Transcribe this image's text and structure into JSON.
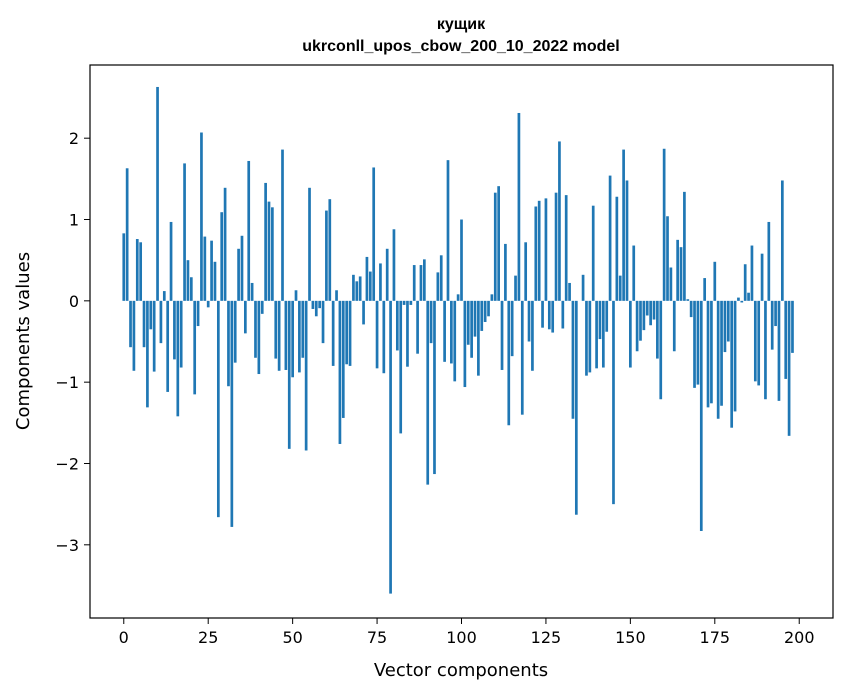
{
  "chart_data": {
    "type": "bar",
    "title_line1": "кущик",
    "title_line2": "ukrconll_upos_cbow_200_10_2022 model",
    "xlabel": "Vector components",
    "ylabel": "Components values",
    "xlim": [
      -10,
      210
    ],
    "ylim": [
      -3.9,
      2.9
    ],
    "xticks": [
      0,
      25,
      50,
      75,
      100,
      125,
      150,
      175,
      200
    ],
    "yticks": [
      -3,
      -2,
      -1,
      0,
      1,
      2
    ],
    "bar_color": "#1f77b4",
    "values": [
      0.83,
      1.63,
      -0.57,
      -0.86,
      0.76,
      0.72,
      -0.57,
      -1.31,
      -0.35,
      -0.87,
      2.63,
      -0.52,
      0.12,
      -1.12,
      0.97,
      -0.72,
      -1.42,
      -0.82,
      1.69,
      0.5,
      0.29,
      -1.15,
      -0.31,
      2.07,
      0.79,
      -0.08,
      0.74,
      0.48,
      -2.66,
      1.09,
      1.39,
      -1.05,
      -2.78,
      -0.76,
      0.64,
      0.8,
      -0.4,
      1.72,
      0.22,
      -0.7,
      -0.9,
      -0.16,
      1.45,
      1.22,
      1.15,
      -0.71,
      -0.86,
      1.86,
      -0.85,
      -1.82,
      -0.94,
      0.13,
      -0.88,
      -0.7,
      -1.84,
      1.39,
      -0.1,
      -0.19,
      -0.09,
      -0.52,
      1.11,
      1.25,
      -0.8,
      0.13,
      -1.76,
      -1.44,
      -0.78,
      -0.8,
      0.32,
      0.24,
      0.3,
      -0.29,
      0.54,
      0.36,
      1.64,
      -0.83,
      0.46,
      -0.89,
      0.64,
      -3.6,
      0.88,
      -0.61,
      -1.63,
      -0.05,
      -0.81,
      -0.05,
      0.44,
      -0.65,
      0.44,
      0.51,
      -2.26,
      -0.52,
      -2.13,
      0.35,
      0.56,
      -0.75,
      1.73,
      -0.77,
      -0.99,
      0.08,
      1.0,
      -1.06,
      -0.54,
      -0.7,
      -0.44,
      -0.92,
      -0.37,
      -0.26,
      -0.19,
      0.08,
      1.33,
      1.41,
      -0.85,
      0.7,
      -1.53,
      -0.68,
      0.31,
      2.31,
      -1.4,
      0.72,
      -0.5,
      -0.86,
      1.16,
      1.23,
      -0.33,
      1.26,
      -0.35,
      -0.39,
      1.33,
      1.96,
      -0.34,
      1.3,
      0.22,
      -1.45,
      -2.63,
      0.0,
      0.32,
      -0.92,
      -0.88,
      1.17,
      -0.83,
      -0.47,
      -0.82,
      -0.38,
      1.54,
      -2.5,
      1.28,
      0.31,
      1.86,
      1.48,
      -0.82,
      0.68,
      -0.62,
      -0.49,
      -0.36,
      -0.18,
      -0.3,
      -0.23,
      -0.71,
      -1.21,
      1.87,
      1.04,
      0.41,
      -0.62,
      0.75,
      0.66,
      1.34,
      0.02,
      -0.2,
      -1.07,
      -1.03,
      -2.83,
      0.28,
      -1.31,
      -1.26,
      0.48,
      -1.45,
      -1.29,
      -0.63,
      -0.5,
      -1.56,
      -1.36,
      0.04,
      -0.02,
      0.45,
      0.1,
      0.68,
      -0.99,
      -1.04,
      0.58,
      -1.21,
      0.97,
      -0.6,
      -0.31,
      -1.23,
      1.48,
      -0.96,
      -1.66,
      -0.64
    ]
  }
}
